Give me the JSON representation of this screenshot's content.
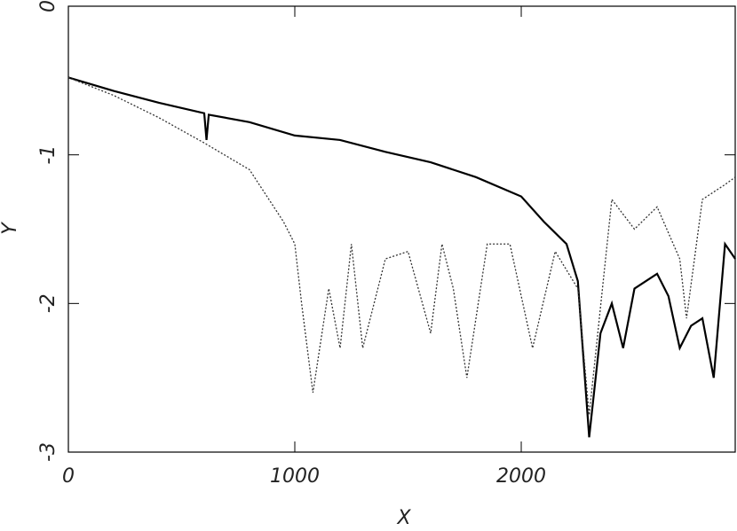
{
  "chart_data": {
    "type": "line",
    "x_label": "X",
    "y_label": "Y",
    "xlim": [
      0,
      2945
    ],
    "ylim": [
      -3,
      0
    ],
    "xticks": [
      0,
      1000,
      2000
    ],
    "yticks": [
      0,
      -1,
      -2,
      -3
    ],
    "series": [
      {
        "color": "#000000",
        "linestyle": "solid",
        "x": [
          0,
          200,
          400,
          600,
          610,
          620,
          800,
          1000,
          1200,
          1400,
          1600,
          1800,
          2000,
          2100,
          2200,
          2250,
          2300,
          2350,
          2400,
          2450,
          2500,
          2550,
          2600,
          2650,
          2700,
          2750,
          2800,
          2850,
          2900,
          2945
        ],
        "values": [
          -0.48,
          -0.57,
          -0.65,
          -0.72,
          -0.9,
          -0.73,
          -0.78,
          -0.87,
          -0.9,
          -0.98,
          -1.05,
          -1.15,
          -1.28,
          -1.45,
          -1.6,
          -1.85,
          -2.9,
          -2.2,
          -2.0,
          -2.3,
          -1.9,
          -1.85,
          -1.8,
          -1.95,
          -2.3,
          -2.15,
          -2.1,
          -2.5,
          -1.6,
          -1.7
        ]
      },
      {
        "color": "#333333",
        "linestyle": "dotted",
        "x": [
          0,
          200,
          400,
          600,
          800,
          950,
          1000,
          1030,
          1080,
          1150,
          1200,
          1250,
          1300,
          1400,
          1500,
          1600,
          1650,
          1700,
          1760,
          1850,
          1950,
          2050,
          2150,
          2250,
          2300,
          2400,
          2500,
          2600,
          2700,
          2730,
          2800,
          2900,
          2945
        ],
        "values": [
          -0.48,
          -0.6,
          -0.75,
          -0.92,
          -1.1,
          -1.45,
          -1.6,
          -2.0,
          -2.6,
          -1.9,
          -2.3,
          -1.6,
          -2.3,
          -1.7,
          -1.65,
          -2.2,
          -1.6,
          -1.9,
          -2.5,
          -1.6,
          -1.6,
          -2.3,
          -1.65,
          -1.9,
          -2.75,
          -1.3,
          -1.5,
          -1.35,
          -1.7,
          -2.1,
          -1.3,
          -1.2,
          -1.15
        ]
      }
    ]
  }
}
